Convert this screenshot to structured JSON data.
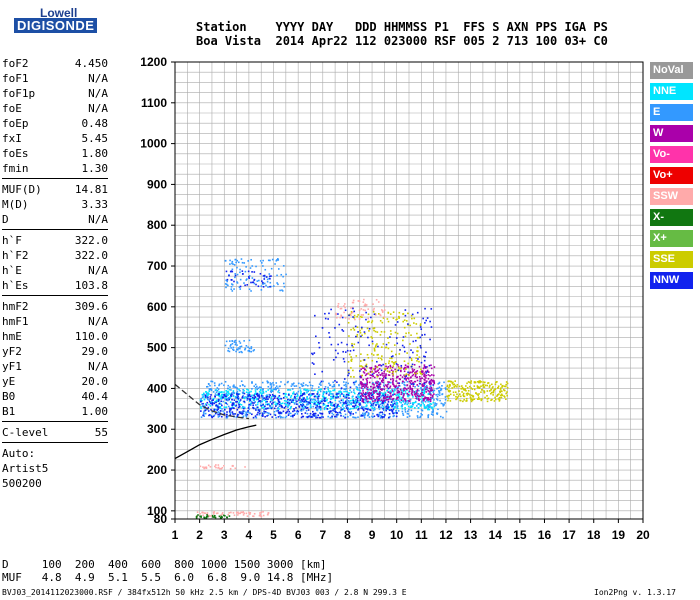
{
  "logo": {
    "line1": "Lowell",
    "line2": "DIGISONDE"
  },
  "header": {
    "row1": "Station    YYYY DAY   DDD HHMMSS P1  FFS S AXN PPS IGA PS",
    "row2": "Boa Vista  2014 Apr22 112 023000 RSF 005 2 713 100 03+ C0"
  },
  "params_group1": [
    {
      "name": "foF2",
      "value": "4.450"
    },
    {
      "name": "foF1",
      "value": "N/A"
    },
    {
      "name": "foF1p",
      "value": "N/A"
    },
    {
      "name": "foE",
      "value": "N/A"
    },
    {
      "name": "foEp",
      "value": "0.48"
    },
    {
      "name": "fxI",
      "value": "5.45"
    },
    {
      "name": "foEs",
      "value": "1.80"
    },
    {
      "name": "fmin",
      "value": "1.30"
    }
  ],
  "params_group2": [
    {
      "name": "MUF(D)",
      "value": "14.81"
    },
    {
      "name": "M(D)",
      "value": "3.33"
    },
    {
      "name": "D",
      "value": "N/A"
    }
  ],
  "params_group3": [
    {
      "name": "h`F",
      "value": "322.0"
    },
    {
      "name": "h`F2",
      "value": "322.0"
    },
    {
      "name": "h`E",
      "value": "N/A"
    },
    {
      "name": "h`Es",
      "value": "103.8"
    }
  ],
  "params_group4": [
    {
      "name": "hmF2",
      "value": "309.6"
    },
    {
      "name": "hmF1",
      "value": "N/A"
    },
    {
      "name": "hmE",
      "value": "110.0"
    },
    {
      "name": "yF2",
      "value": "29.0"
    },
    {
      "name": "yF1",
      "value": "N/A"
    },
    {
      "name": "yE",
      "value": "20.0"
    },
    {
      "name": "B0",
      "value": "40.4"
    },
    {
      "name": "B1",
      "value": "1.00"
    }
  ],
  "clevel": {
    "name": "C-level",
    "value": "55"
  },
  "auto": {
    "line1": "Auto:",
    "line2": "Artist5",
    "line3": "500200"
  },
  "bottom_table": {
    "d_row": "D     100  200  400  600  800 1000 1500 3000 [km]",
    "muf_row": "MUF   4.8  4.9  5.1  5.5  6.0  6.8  9.0 14.8 [MHz]"
  },
  "footer": {
    "left": "BVJ03_2014112023000.RSF / 384fx512h 50 kHz 2.5 km / DPS-4D BVJ03 003 / 2.8 N 299.3 E",
    "right": "Ion2Png v. 1.3.17"
  },
  "chart_data": {
    "type": "scatter",
    "title": "",
    "xlabel": "",
    "ylabel": "",
    "xlim": [
      1,
      20
    ],
    "ylim": [
      80,
      1200
    ],
    "x_ticks": [
      "1",
      "2",
      "3",
      "4",
      "5",
      "6",
      "7",
      "8",
      "9",
      "10",
      "11",
      "12",
      "13",
      "14",
      "15",
      "16",
      "17",
      "18",
      "19",
      "20"
    ],
    "y_ticks": [
      "80",
      "100",
      "200",
      "300",
      "400",
      "500",
      "600",
      "700",
      "800",
      "900",
      "1000",
      "1100",
      "1200"
    ],
    "legend": [
      {
        "label": "NoVal",
        "color": "#999999"
      },
      {
        "label": "NNE",
        "color": "#00e5ff"
      },
      {
        "label": "E",
        "color": "#3399ff"
      },
      {
        "label": "W",
        "color": "#aa00aa"
      },
      {
        "label": "Vo-",
        "color": "#ff33aa"
      },
      {
        "label": "Vo+",
        "color": "#ee0000"
      },
      {
        "label": "SSW",
        "color": "#ffaaaa"
      },
      {
        "label": "X-",
        "color": "#117711"
      },
      {
        "label": "X+",
        "color": "#66bb44"
      },
      {
        "label": "SSE",
        "color": "#cccc00"
      },
      {
        "label": "NNW",
        "color": "#1122ee"
      }
    ],
    "clusters": [
      {
        "name": "F-trace-E",
        "color": "#3399ff",
        "x": [
          2.0,
          12.0
        ],
        "y": [
          330,
          420
        ],
        "n": 900
      },
      {
        "name": "F-trace-NNE",
        "color": "#00e5ff",
        "x": [
          2.0,
          11.5
        ],
        "y": [
          350,
          400
        ],
        "n": 500
      },
      {
        "name": "F-trace-NNW",
        "color": "#1122ee",
        "x": [
          2.0,
          10.0
        ],
        "y": [
          330,
          390
        ],
        "n": 500
      },
      {
        "name": "F-trace-W",
        "color": "#aa00aa",
        "x": [
          8.5,
          11.5
        ],
        "y": [
          370,
          460
        ],
        "n": 450
      },
      {
        "name": "F-trace-SSE",
        "color": "#cccc00",
        "x": [
          12.0,
          14.5
        ],
        "y": [
          370,
          420
        ],
        "n": 220
      },
      {
        "name": "F2-high-SSE",
        "color": "#cccc00",
        "x": [
          8.0,
          11.0
        ],
        "y": [
          430,
          590
        ],
        "n": 200
      },
      {
        "name": "F2-high-SSW",
        "color": "#ffaaaa",
        "x": [
          7.5,
          9.5
        ],
        "y": [
          570,
          620
        ],
        "n": 60
      },
      {
        "name": "F2-high-NNW",
        "color": "#1122ee",
        "x": [
          6.5,
          11.5
        ],
        "y": [
          400,
          600
        ],
        "n": 150
      },
      {
        "name": "multi-hop-E",
        "color": "#3399ff",
        "x": [
          3.0,
          5.5
        ],
        "y": [
          640,
          720
        ],
        "n": 100
      },
      {
        "name": "multi-hop-NNW",
        "color": "#1122ee",
        "x": [
          3.0,
          5.0
        ],
        "y": [
          650,
          690
        ],
        "n": 40
      },
      {
        "name": "second-hop-E",
        "color": "#3399ff",
        "x": [
          3.0,
          4.2
        ],
        "y": [
          490,
          520
        ],
        "n": 50
      },
      {
        "name": "Es-trace",
        "color": "#ffaaaa",
        "x": [
          1.8,
          4.8
        ],
        "y": [
          88,
          100
        ],
        "n": 60
      },
      {
        "name": "Es-trace-green",
        "color": "#117711",
        "x": [
          1.8,
          3.2
        ],
        "y": [
          84,
          92
        ],
        "n": 30
      },
      {
        "name": "Es-trace-2",
        "color": "#ffaaaa",
        "x": [
          2.0,
          4.0
        ],
        "y": [
          205,
          215
        ],
        "n": 25
      }
    ],
    "profile_curves": [
      {
        "name": "dashed-profile",
        "style": "dashed",
        "color": "#333333",
        "x": [
          1.0,
          1.5,
          2.0,
          2.5,
          3.0,
          3.5,
          4.0
        ],
        "y": [
          410,
          385,
          360,
          345,
          335,
          330,
          326
        ]
      },
      {
        "name": "solid-profile",
        "style": "solid",
        "color": "#000000",
        "x": [
          1.0,
          1.5,
          2.0,
          2.5,
          3.0,
          3.5,
          4.0,
          4.3
        ],
        "y": [
          228,
          245,
          262,
          275,
          287,
          298,
          306,
          310
        ]
      }
    ]
  }
}
